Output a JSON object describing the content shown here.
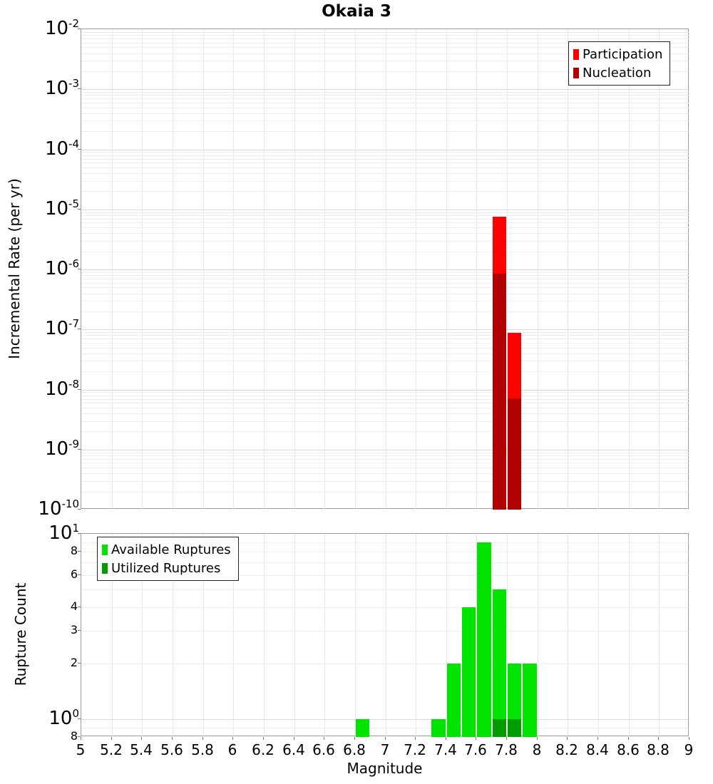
{
  "title": "Okaia 3",
  "axes": {
    "x_ticks": [
      {
        "v": 5,
        "label": "5"
      },
      {
        "v": 5.2,
        "label": "5.2"
      },
      {
        "v": 5.4,
        "label": "5.4"
      },
      {
        "v": 5.6,
        "label": "5.6"
      },
      {
        "v": 5.8,
        "label": "5.8"
      },
      {
        "v": 6,
        "label": "6"
      },
      {
        "v": 6.2,
        "label": "6.2"
      },
      {
        "v": 6.4,
        "label": "6.4"
      },
      {
        "v": 6.6,
        "label": "6.6"
      },
      {
        "v": 6.8,
        "label": "6.8"
      },
      {
        "v": 7,
        "label": "7"
      },
      {
        "v": 7.2,
        "label": "7.2"
      },
      {
        "v": 7.4,
        "label": "7.4"
      },
      {
        "v": 7.6,
        "label": "7.6"
      },
      {
        "v": 7.8,
        "label": "7.8"
      },
      {
        "v": 8,
        "label": "8"
      },
      {
        "v": 8.2,
        "label": "8.2"
      },
      {
        "v": 8.4,
        "label": "8.4"
      },
      {
        "v": 8.6,
        "label": "8.6"
      },
      {
        "v": 8.8,
        "label": "8.8"
      },
      {
        "v": 9,
        "label": "9"
      }
    ],
    "rate_y_ticks": [
      {
        "v": 0.01,
        "base": "10",
        "exp": "-2"
      },
      {
        "v": 0.001,
        "base": "10",
        "exp": "-3"
      },
      {
        "v": 0.0001,
        "base": "10",
        "exp": "-4"
      },
      {
        "v": 1e-05,
        "base": "10",
        "exp": "-5"
      },
      {
        "v": 1e-06,
        "base": "10",
        "exp": "-6"
      },
      {
        "v": 1e-07,
        "base": "10",
        "exp": "-7"
      },
      {
        "v": 1e-08,
        "base": "10",
        "exp": "-8"
      },
      {
        "v": 1e-09,
        "base": "10",
        "exp": "-9"
      },
      {
        "v": 1e-10,
        "base": "10",
        "exp": "-10"
      }
    ],
    "count_y_ticks": [
      {
        "v": 10,
        "base": "10",
        "exp": "1"
      },
      {
        "v": 8,
        "label": "8"
      },
      {
        "v": 6,
        "label": "6"
      },
      {
        "v": 4,
        "label": "4"
      },
      {
        "v": 3,
        "label": "3"
      },
      {
        "v": 2,
        "label": "2"
      },
      {
        "v": 1,
        "base": "10",
        "exp": "0"
      },
      {
        "v": 0.8,
        "label": "8"
      }
    ]
  },
  "chart_data": [
    {
      "type": "bar",
      "title": "Okaia 3",
      "xlabel": "",
      "ylabel": "Incremental Rate (per yr)",
      "xlim": [
        5,
        9
      ],
      "ylim": [
        1e-10,
        0.01
      ],
      "yscale": "log",
      "xscale": "linear",
      "grid": true,
      "bin_width": 0.1,
      "legend_position": "top-right",
      "series": [
        {
          "name": "Participation",
          "color": "#ff0000",
          "bins": [
            {
              "x0": 7.7,
              "x1": 7.8,
              "value": 7.5e-06
            },
            {
              "x0": 7.8,
              "x1": 7.9,
              "value": 8.8e-08
            }
          ]
        },
        {
          "name": "Nucleation",
          "color": "#b20000",
          "bins": [
            {
              "x0": 7.7,
              "x1": 7.8,
              "value": 8.5e-07
            },
            {
              "x0": 7.8,
              "x1": 7.9,
              "value": 7.2e-09
            }
          ]
        }
      ]
    },
    {
      "type": "bar",
      "title": "",
      "xlabel": "Magnitude",
      "ylabel": "Rupture Count",
      "xlim": [
        5,
        9
      ],
      "ylim": [
        0.8,
        10
      ],
      "yscale": "log",
      "xscale": "linear",
      "grid": true,
      "bin_width": 0.1,
      "legend_position": "top-left",
      "series": [
        {
          "name": "Available Ruptures",
          "color": "#00e400",
          "bins": [
            {
              "x0": 6.8,
              "x1": 6.9,
              "value": 1
            },
            {
              "x0": 7.3,
              "x1": 7.4,
              "value": 1
            },
            {
              "x0": 7.4,
              "x1": 7.5,
              "value": 2
            },
            {
              "x0": 7.5,
              "x1": 7.6,
              "value": 4
            },
            {
              "x0": 7.6,
              "x1": 7.7,
              "value": 9
            },
            {
              "x0": 7.7,
              "x1": 7.8,
              "value": 5
            },
            {
              "x0": 7.8,
              "x1": 7.9,
              "value": 2
            },
            {
              "x0": 7.9,
              "x1": 8.0,
              "value": 2
            }
          ]
        },
        {
          "name": "Utilized Ruptures",
          "color": "#009c00",
          "bins": [
            {
              "x0": 7.7,
              "x1": 7.8,
              "value": 1
            },
            {
              "x0": 7.8,
              "x1": 7.9,
              "value": 1
            }
          ]
        }
      ]
    }
  ]
}
